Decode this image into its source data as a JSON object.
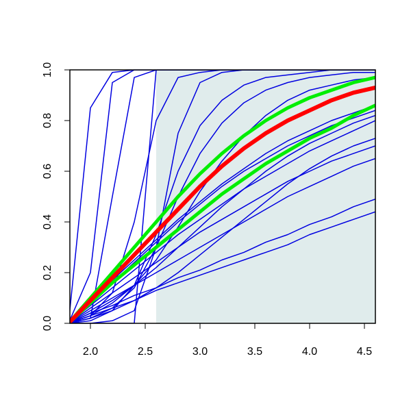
{
  "chart_data": {
    "type": "line",
    "x": [
      1.8,
      2.0,
      2.2,
      2.4,
      2.6,
      2.8,
      3.0,
      3.2,
      3.4,
      3.6,
      3.8,
      4.0,
      4.2,
      4.4,
      4.6
    ],
    "xlim": [
      1.8125,
      4.6
    ],
    "ylim": [
      0,
      1
    ],
    "xticks": [
      {
        "value": 2,
        "label": "2.0"
      },
      2.5,
      {
        "value": 3,
        "label": "3.0"
      },
      3.5,
      {
        "value": 4,
        "label": "4.0"
      },
      4.5
    ],
    "yticks": [
      {
        "value": 0,
        "label": "0.0"
      },
      0.2,
      0.4,
      0.6,
      0.8,
      {
        "value": 1,
        "label": "1.0"
      }
    ],
    "shade": {
      "x": [
        2.6,
        4.6
      ],
      "color": "#e0ecec"
    },
    "series": [
      {
        "color": "#0000e0",
        "line_width": 1.5,
        "values": [
          0,
          0.85,
          0.99,
          1,
          1,
          1,
          1,
          1,
          1,
          1,
          1,
          1,
          1,
          1,
          1
        ]
      },
      {
        "color": "#0000e0",
        "line_width": 1.5,
        "values": [
          0,
          0.2,
          0.95,
          1,
          1,
          1,
          1,
          1,
          1,
          1,
          1,
          1,
          1,
          1,
          1
        ]
      },
      {
        "color": "#0000e0",
        "line_width": 1.5,
        "values": [
          0,
          0.02,
          0.5,
          0.97,
          1,
          1,
          1,
          1,
          1,
          1,
          1,
          1,
          1,
          1,
          1
        ]
      },
      {
        "color": "#0000e0",
        "line_width": 1.5,
        "values": [
          0,
          0,
          0,
          0,
          1,
          1,
          1,
          1,
          1,
          1,
          1,
          1,
          1,
          1,
          1
        ]
      },
      {
        "color": "#0000e0",
        "line_width": 1.5,
        "values": [
          0,
          0.03,
          0.12,
          0.4,
          0.8,
          0.97,
          0.99,
          1,
          1,
          1,
          1,
          1,
          1,
          1,
          1
        ]
      },
      {
        "color": "#0000e0",
        "line_width": 1.5,
        "values": [
          0,
          0,
          0.01,
          0.05,
          0.3,
          0.75,
          0.95,
          0.99,
          1,
          1,
          1,
          1,
          1,
          1,
          1
        ]
      },
      {
        "color": "#0000e0",
        "line_width": 1.5,
        "values": [
          0,
          0.01,
          0.05,
          0.15,
          0.35,
          0.6,
          0.78,
          0.88,
          0.94,
          0.97,
          0.98,
          0.99,
          1,
          1,
          1
        ]
      },
      {
        "color": "#0000e0",
        "line_width": 1.5,
        "values": [
          0,
          0.02,
          0.06,
          0.14,
          0.3,
          0.5,
          0.67,
          0.79,
          0.87,
          0.92,
          0.95,
          0.97,
          0.98,
          0.99,
          0.99
        ]
      },
      {
        "color": "#0000e0",
        "line_width": 1.5,
        "values": [
          0,
          0.03,
          0.08,
          0.15,
          0.25,
          0.38,
          0.52,
          0.64,
          0.74,
          0.82,
          0.88,
          0.92,
          0.94,
          0.96,
          0.97
        ]
      },
      {
        "color": "#0000e0",
        "line_width": 1.5,
        "values": [
          0,
          0.06,
          0.12,
          0.18,
          0.24,
          0.3,
          0.36,
          0.41,
          0.46,
          0.51,
          0.56,
          0.6,
          0.64,
          0.67,
          0.7
        ]
      },
      {
        "color": "#0000e0",
        "line_width": 1.5,
        "values": [
          0,
          0.05,
          0.1,
          0.15,
          0.2,
          0.25,
          0.3,
          0.35,
          0.4,
          0.45,
          0.5,
          0.54,
          0.58,
          0.62,
          0.65
        ]
      },
      {
        "color": "#0000e0",
        "line_width": 1.5,
        "values": [
          0,
          0.07,
          0.14,
          0.21,
          0.28,
          0.35,
          0.41,
          0.47,
          0.53,
          0.58,
          0.63,
          0.68,
          0.72,
          0.76,
          0.8
        ]
      },
      {
        "color": "#0000e0",
        "line_width": 1.5,
        "values": [
          0,
          0.08,
          0.16,
          0.24,
          0.32,
          0.4,
          0.47,
          0.54,
          0.6,
          0.65,
          0.7,
          0.74,
          0.78,
          0.81,
          0.84
        ]
      },
      {
        "color": "#0000e0",
        "line_width": 1.5,
        "values": [
          0,
          0.09,
          0.17,
          0.25,
          0.33,
          0.41,
          0.48,
          0.55,
          0.61,
          0.67,
          0.72,
          0.76,
          0.8,
          0.83,
          0.86
        ]
      },
      {
        "color": "#0000e0",
        "line_width": 1.5,
        "values": [
          0,
          0.03,
          0.06,
          0.09,
          0.13,
          0.16,
          0.19,
          0.22,
          0.25,
          0.28,
          0.31,
          0.35,
          0.38,
          0.41,
          0.44
        ]
      },
      {
        "color": "#0000e0",
        "line_width": 1.5,
        "values": [
          0,
          0.04,
          0.07,
          0.11,
          0.14,
          0.18,
          0.21,
          0.25,
          0.28,
          0.32,
          0.35,
          0.39,
          0.42,
          0.46,
          0.49
        ]
      },
      {
        "color": "#0000e0",
        "line_width": 1.5,
        "values": [
          0,
          0.02,
          0.05,
          0.09,
          0.14,
          0.2,
          0.27,
          0.34,
          0.41,
          0.48,
          0.55,
          0.61,
          0.66,
          0.7,
          0.73
        ]
      },
      {
        "color": "#0000e0",
        "line_width": 1.5,
        "values": [
          0,
          0.04,
          0.09,
          0.15,
          0.22,
          0.3,
          0.38,
          0.46,
          0.53,
          0.6,
          0.66,
          0.71,
          0.75,
          0.79,
          0.82
        ]
      },
      {
        "color": "#00ee00",
        "line_width": 5,
        "values": [
          0,
          0.1,
          0.2,
          0.3,
          0.4,
          0.5,
          0.59,
          0.67,
          0.74,
          0.8,
          0.85,
          0.89,
          0.92,
          0.95,
          0.97
        ]
      },
      {
        "color": "#00ee00",
        "line_width": 5,
        "values": [
          0,
          0.08,
          0.16,
          0.23,
          0.3,
          0.37,
          0.44,
          0.51,
          0.57,
          0.63,
          0.68,
          0.73,
          0.77,
          0.82,
          0.86
        ]
      },
      {
        "color": "#ff0000",
        "line_width": 6,
        "values": [
          0,
          0.09,
          0.18,
          0.27,
          0.36,
          0.45,
          0.54,
          0.62,
          0.69,
          0.75,
          0.8,
          0.84,
          0.88,
          0.91,
          0.93
        ]
      }
    ]
  }
}
